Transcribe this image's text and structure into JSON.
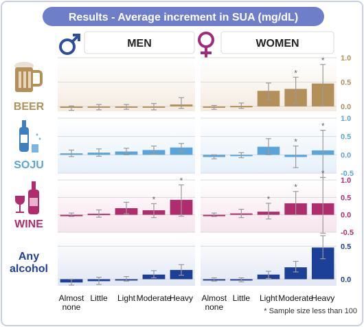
{
  "title": "Results - Average increment in SUA (mg/dL)",
  "columns": [
    {
      "label": "MEN",
      "icon": "male-symbol-icon"
    },
    {
      "label": "WOMEN",
      "icon": "female-symbol-icon"
    }
  ],
  "categories": [
    "Almost none",
    "Little",
    "Light",
    "Moderate",
    "Heavy"
  ],
  "footnote": "* Sample size less than 100",
  "colors": {
    "title_bg": "#6f7ec8",
    "beer": "#b38f5a",
    "soju": "#5aa4dc",
    "wine": "#b02d6d",
    "any": "#1c3f97",
    "male": "#2c4f9e",
    "female": "#a02b7e"
  },
  "chart_data": [
    {
      "type": "bar",
      "row": "BEER",
      "icon": "beer-mug-icon",
      "color": "#b38f5a",
      "ylim": [
        -0.1,
        1.0
      ],
      "ticks": [
        "0.0",
        "0.5",
        "1.0"
      ],
      "series": [
        {
          "name": "MEN",
          "values": [
            -0.03,
            -0.01,
            -0.01,
            -0.01,
            0.04
          ],
          "ci": [
            [
              -0.08,
              0.01
            ],
            [
              -0.07,
              0.04
            ],
            [
              -0.06,
              0.04
            ],
            [
              -0.07,
              0.06
            ],
            [
              -0.04,
              0.18
            ]
          ],
          "starred": [
            false,
            false,
            false,
            false,
            false
          ]
        },
        {
          "name": "WOMEN",
          "values": [
            -0.02,
            0.01,
            0.32,
            0.36,
            0.47
          ],
          "ci": [
            [
              -0.06,
              0.02
            ],
            [
              -0.04,
              0.07
            ],
            [
              0.14,
              0.48
            ],
            [
              0.06,
              0.6
            ],
            [
              0.02,
              0.86
            ]
          ],
          "starred": [
            false,
            false,
            false,
            true,
            true
          ]
        }
      ]
    },
    {
      "type": "bar",
      "row": "SOJU",
      "icon": "soju-bottle-icon",
      "color": "#5aa4dc",
      "ylim": [
        -0.5,
        1.0
      ],
      "ticks": [
        "-0.5",
        "0.0",
        "0.5",
        "1.0"
      ],
      "series": [
        {
          "name": "MEN",
          "values": [
            0.04,
            0.06,
            0.09,
            0.13,
            0.2
          ],
          "ci": [
            [
              -0.05,
              0.13
            ],
            [
              -0.04,
              0.16
            ],
            [
              0.0,
              0.18
            ],
            [
              0.02,
              0.24
            ],
            [
              0.1,
              0.31
            ]
          ],
          "starred": [
            false,
            false,
            false,
            false,
            false
          ]
        },
        {
          "name": "WOMEN",
          "values": [
            -0.06,
            -0.01,
            0.22,
            -0.06,
            0.12
          ],
          "ci": [
            [
              -0.11,
              0.0
            ],
            [
              -0.08,
              0.06
            ],
            [
              0.0,
              0.44
            ],
            [
              -0.35,
              0.24
            ],
            [
              -0.62,
              0.67
            ]
          ],
          "starred": [
            false,
            false,
            false,
            true,
            true
          ]
        }
      ]
    },
    {
      "type": "bar",
      "row": "WINE",
      "icon": "wine-bottle-icon",
      "color": "#b02d6d",
      "ylim": [
        -0.5,
        1.0
      ],
      "ticks": [
        "-0.5",
        "0.0",
        "0.5",
        "1.0"
      ],
      "series": [
        {
          "name": "MEN",
          "values": [
            0.0,
            0.03,
            0.19,
            0.13,
            0.43
          ],
          "ci": [
            [
              -0.05,
              0.05
            ],
            [
              -0.07,
              0.14
            ],
            [
              0.03,
              0.36
            ],
            [
              -0.08,
              0.32
            ],
            [
              -0.04,
              0.86
            ]
          ],
          "starred": [
            false,
            false,
            false,
            true,
            true
          ]
        },
        {
          "name": "WOMEN",
          "values": [
            0.0,
            0.04,
            0.09,
            0.33,
            0.33
          ],
          "ci": [
            [
              -0.05,
              0.05
            ],
            [
              -0.08,
              0.16
            ],
            [
              -0.12,
              0.33
            ],
            [
              0.0,
              0.67
            ],
            [
              -0.53,
              1.07
            ]
          ],
          "starred": [
            false,
            false,
            true,
            true,
            true
          ]
        }
      ]
    },
    {
      "type": "bar",
      "row": "Any alcohol",
      "icon": "",
      "color": "#1c3f97",
      "ylim": [
        -0.1,
        0.65
      ],
      "ticks": [
        "0.0",
        "0.5"
      ],
      "series": [
        {
          "name": "MEN",
          "values": [
            -0.05,
            -0.03,
            0.0,
            0.07,
            0.14
          ],
          "ci": [
            [
              -0.09,
              0.0
            ],
            [
              -0.08,
              0.03
            ],
            [
              -0.03,
              0.04
            ],
            [
              0.02,
              0.13
            ],
            [
              0.06,
              0.22
            ]
          ],
          "starred": [
            false,
            false,
            false,
            false,
            false
          ]
        },
        {
          "name": "WOMEN",
          "values": [
            -0.01,
            -0.01,
            0.07,
            0.18,
            0.48
          ],
          "ci": [
            [
              -0.03,
              0.02
            ],
            [
              -0.04,
              0.02
            ],
            [
              0.01,
              0.12
            ],
            [
              0.11,
              0.27
            ],
            [
              0.31,
              0.66
            ]
          ],
          "starred": [
            false,
            false,
            false,
            false,
            false
          ]
        }
      ]
    }
  ]
}
